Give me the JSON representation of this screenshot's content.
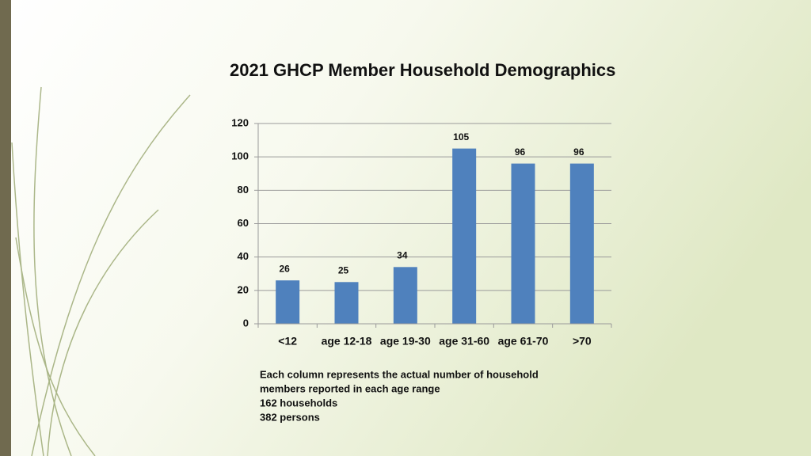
{
  "chart_data": {
    "type": "bar",
    "title": "2021 GHCP Member Household Demographics",
    "categories": [
      "<12",
      "age 12-18",
      "age 19-30",
      "age 31-60",
      "age 61-70",
      ">70"
    ],
    "values": [
      26,
      25,
      34,
      105,
      96,
      96
    ],
    "color": "#4f81bd",
    "ylim": [
      0,
      120
    ],
    "yticks": [
      0,
      20,
      40,
      60,
      80,
      100,
      120
    ],
    "grid": true,
    "annotations": [
      "Each column represents the  actual number of household",
      "members reported in each age range",
      "162 households",
      "382 persons"
    ]
  }
}
